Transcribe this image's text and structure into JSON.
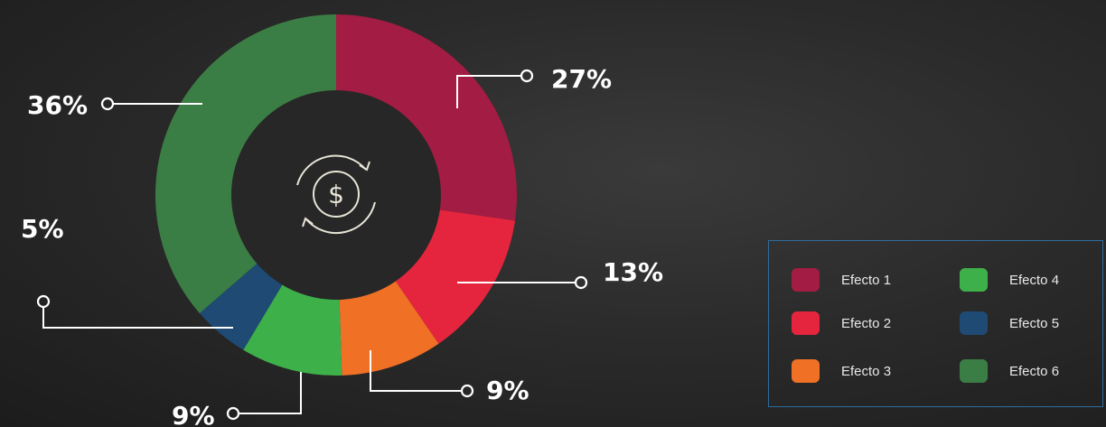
{
  "chart_data": {
    "type": "donut",
    "slices": [
      {
        "name": "Efecto 1",
        "value": 27,
        "label": "27%",
        "color": "#a31c43"
      },
      {
        "name": "Efecto 2",
        "value": 13,
        "label": "13%",
        "color": "#e5253d"
      },
      {
        "name": "Efecto 3",
        "value": 9,
        "label": "9%",
        "color": "#f07026"
      },
      {
        "name": "Efecto 4",
        "value": 9,
        "label": "9%",
        "color": "#3eb04a"
      },
      {
        "name": "Efecto 5",
        "value": 5,
        "label": "5%",
        "color": "#1e4a73"
      },
      {
        "name": "Efecto 6",
        "value": 36,
        "label": "36%",
        "color": "#3b7e45"
      }
    ],
    "center_icon": "dollar-refresh-icon",
    "legend_placement": "bottom-right"
  },
  "legend": {
    "items": [
      {
        "label": "Efecto 1",
        "color": "#a31c43"
      },
      {
        "label": "Efecto 2",
        "color": "#e5253d"
      },
      {
        "label": "Efecto 3",
        "color": "#f07026"
      },
      {
        "label": "Efecto 4",
        "color": "#3eb04a"
      },
      {
        "label": "Efecto 5",
        "color": "#1e4a73"
      },
      {
        "label": "Efecto 6",
        "color": "#3b7e45"
      }
    ]
  }
}
